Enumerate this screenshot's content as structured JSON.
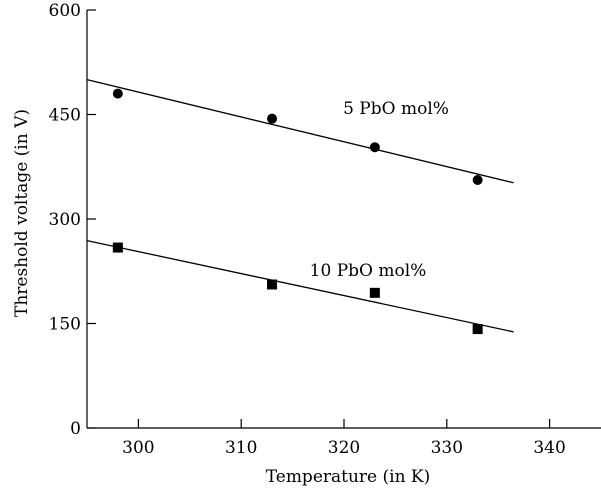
{
  "chart_data": {
    "type": "scatter",
    "xlabel": "Temperature (in K)",
    "ylabel": "Threshold voltage (in V)",
    "xlim": [
      295,
      345
    ],
    "ylim": [
      0,
      600
    ],
    "xticks": [
      300,
      310,
      320,
      330,
      340
    ],
    "yticks": [
      0,
      150,
      300,
      450,
      600
    ],
    "grid": false,
    "series": [
      {
        "name": "5 PbO mol%",
        "marker": "circle",
        "x": [
          298,
          313,
          323,
          333
        ],
        "y": [
          480,
          444,
          403,
          356
        ],
        "fit": {
          "x": [
            295,
            336.5
          ],
          "y": [
            500,
            352
          ]
        }
      },
      {
        "name": "10 PbO mol%",
        "marker": "square",
        "x": [
          298,
          313,
          323,
          333
        ],
        "y": [
          259,
          206,
          194,
          142
        ],
        "fit": {
          "x": [
            295,
            336.5
          ],
          "y": [
            269,
            138
          ]
        }
      }
    ]
  }
}
